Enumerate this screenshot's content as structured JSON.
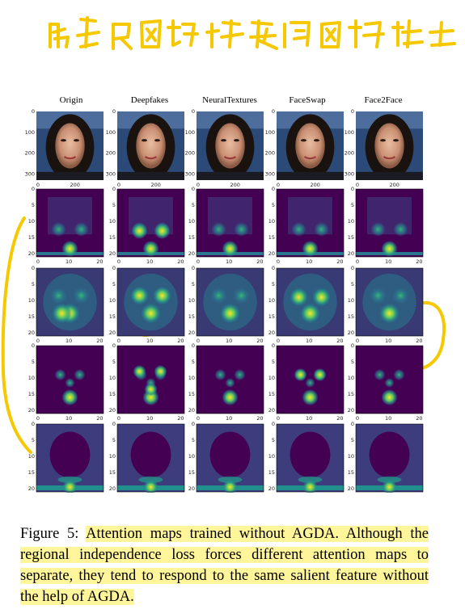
{
  "handwritten_note": "局部区域提关使区域独立",
  "figure": {
    "column_headers": [
      "Origin",
      "Deepfakes",
      "NeuralTextures",
      "FaceSwap",
      "Face2Face"
    ],
    "row1_yticks": [
      "0",
      "100",
      "200",
      "300"
    ],
    "row1_xticks": [
      "0",
      "200"
    ],
    "attn_yticks": [
      "0",
      "5",
      "10",
      "15",
      "20"
    ],
    "attn_xticks": [
      "0",
      "10",
      "20"
    ]
  },
  "caption": {
    "label": "Figure 5: ",
    "text": "Attention maps trained without AGDA. Although the regional independence loss forces different attention maps to separate, they tend to respond to the same salient feature without the help of AGDA."
  },
  "colors": {
    "viridis_dark": "#440154",
    "viridis_mid": "#21908d",
    "viridis_bright": "#fde725",
    "highlight": "#fff59a",
    "annotation_ink": "#f5c800"
  }
}
